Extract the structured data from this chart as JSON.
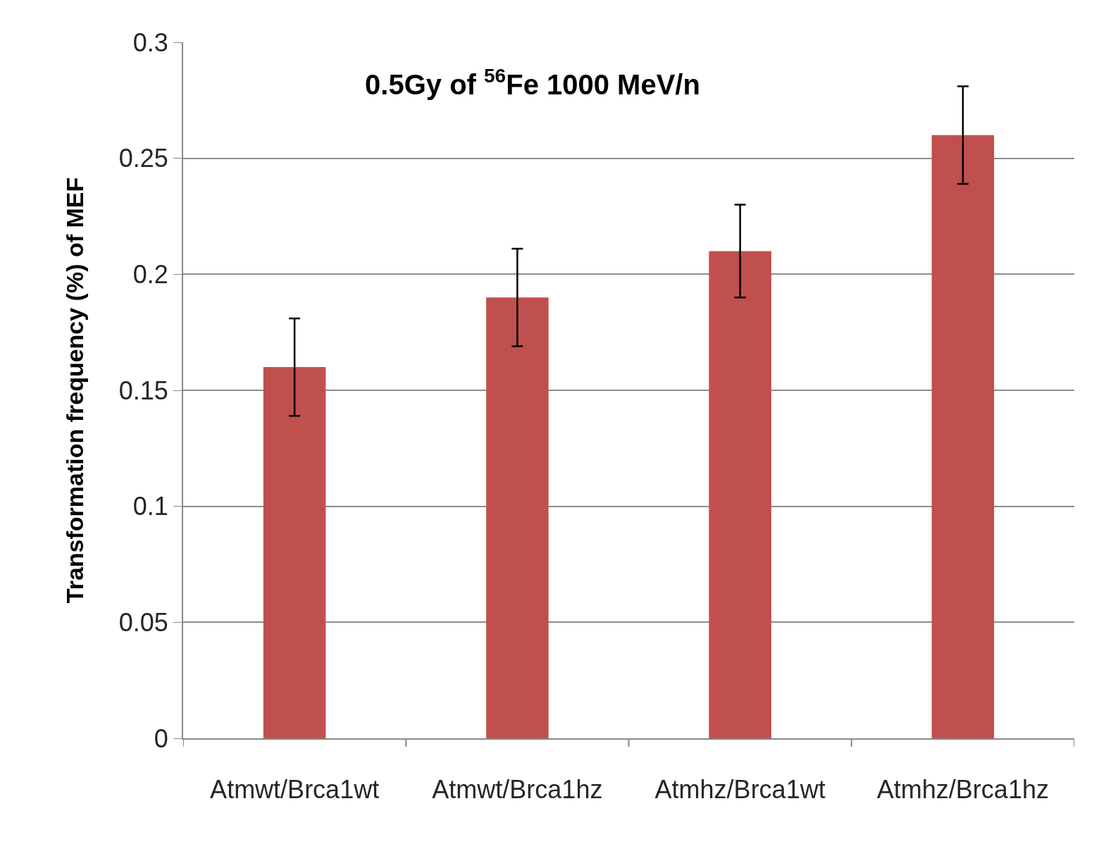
{
  "chart_data": {
    "type": "bar",
    "title": "0.5Gy of $^{56}$Fe 1000 MeV/n",
    "ylabel": "Transformation frequency (%) of MEF",
    "categories": [
      "Atmwt/Brca1wt",
      "Atmwt/Brca1hz",
      "Atmhz/Brca1wt",
      "Atmhz/Brca1hz"
    ],
    "values": [
      0.16,
      0.19,
      0.21,
      0.26
    ],
    "errors": [
      0.021,
      0.021,
      0.02,
      0.021
    ],
    "color": "#c0504d",
    "ylim": [
      0,
      0.3
    ],
    "yticks": [
      0,
      0.05,
      0.1,
      0.15,
      0.2,
      0.25,
      0.3
    ],
    "grid": "y"
  }
}
